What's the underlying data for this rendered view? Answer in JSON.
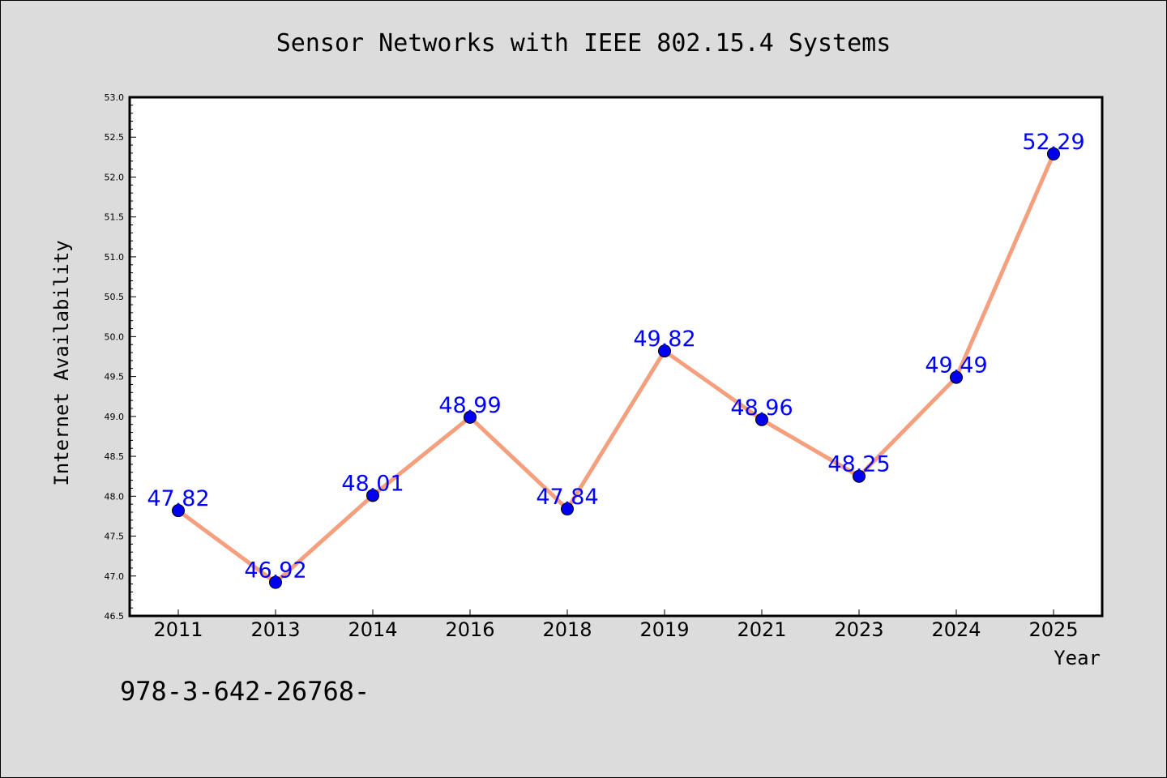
{
  "chart_data": {
    "type": "line",
    "title": "Sensor Networks with IEEE 802.15.4 Systems",
    "xlabel": "Year",
    "ylabel": "Internet Availability",
    "categories": [
      "2011",
      "2013",
      "2014",
      "2016",
      "2018",
      "2019",
      "2021",
      "2023",
      "2024",
      "2025"
    ],
    "series": [
      {
        "values": [
          47.82,
          46.92,
          48.01,
          48.99,
          47.84,
          49.82,
          48.96,
          48.25,
          49.49,
          52.29
        ],
        "data_labels": [
          "47.82",
          "46.92",
          "48.01",
          "48.99",
          "47.84",
          "49.82",
          "48.96",
          "48.25",
          "49.49",
          "52.29"
        ],
        "line_color": "#f4a07e",
        "marker_color": "#0000ee"
      }
    ],
    "ylim": [
      46.5,
      53.0
    ],
    "yticks": [
      "46.5",
      "47.0",
      "47.5",
      "48.0",
      "48.5",
      "49.0",
      "49.5",
      "50.0",
      "50.5",
      "51.0",
      "51.5",
      "52.0",
      "52.5",
      "53.0"
    ],
    "grid": false,
    "label_color": "#0000ff",
    "background": "#dcdcdc",
    "plot_background": "#ffffff"
  },
  "footnote": "978-3-642-26768-"
}
